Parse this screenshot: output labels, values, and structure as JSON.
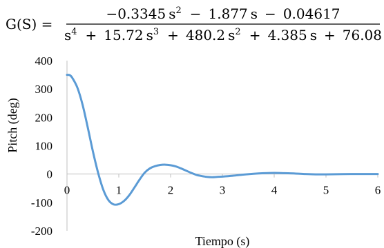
{
  "formula": {
    "lhs": "G(S) =",
    "numerator": [
      {
        "coef": "−0.3345",
        "var": "s",
        "exp": "2",
        "op": ""
      },
      {
        "coef": "1.877",
        "var": "s",
        "exp": "",
        "op": "−"
      },
      {
        "coef": "0.04617",
        "var": "",
        "exp": "",
        "op": "−"
      }
    ],
    "denominator": [
      {
        "coef": "",
        "var": "s",
        "exp": "4",
        "op": ""
      },
      {
        "coef": "15.72",
        "var": "s",
        "exp": "3",
        "op": "+"
      },
      {
        "coef": "480.2",
        "var": "s",
        "exp": "2",
        "op": "+"
      },
      {
        "coef": "4.385",
        "var": "s",
        "exp": "",
        "op": "+"
      },
      {
        "coef": "76.08",
        "var": "",
        "exp": "",
        "op": "+"
      }
    ]
  },
  "chart_data": {
    "type": "line",
    "xlabel": "Tiempo (s)",
    "ylabel": "Pitch (deg)",
    "xlim": [
      0,
      6
    ],
    "ylim": [
      -200,
      400
    ],
    "x_ticks": [
      0,
      1,
      2,
      3,
      4,
      5,
      6
    ],
    "y_ticks": [
      400,
      300,
      200,
      100,
      0,
      -100,
      -200
    ],
    "grid": false,
    "legend": "none",
    "series": [
      {
        "color": "#5b9bd5",
        "x": [
          0,
          0.05,
          0.1,
          0.2,
          0.3,
          0.4,
          0.5,
          0.6,
          0.7,
          0.8,
          0.9,
          1.0,
          1.1,
          1.2,
          1.3,
          1.4,
          1.5,
          1.6,
          1.7,
          1.8,
          1.9,
          2.0,
          2.1,
          2.2,
          2.3,
          2.4,
          2.5,
          2.6,
          2.7,
          2.8,
          2.9,
          3.0,
          3.2,
          3.4,
          3.6,
          3.8,
          4.0,
          4.2,
          4.4,
          4.6,
          4.8,
          5.0,
          5.5,
          6.0
        ],
        "y": [
          350,
          349,
          340,
          305,
          245,
          165,
          80,
          5,
          -55,
          -92,
          -107,
          -106,
          -95,
          -75,
          -48,
          -20,
          5,
          20,
          28,
          32,
          33,
          31,
          27,
          20,
          12,
          4,
          -3,
          -7,
          -10,
          -11,
          -10,
          -9,
          -6,
          -2,
          1,
          3,
          4,
          3,
          2,
          0,
          -1,
          -1,
          0,
          0
        ]
      }
    ]
  }
}
